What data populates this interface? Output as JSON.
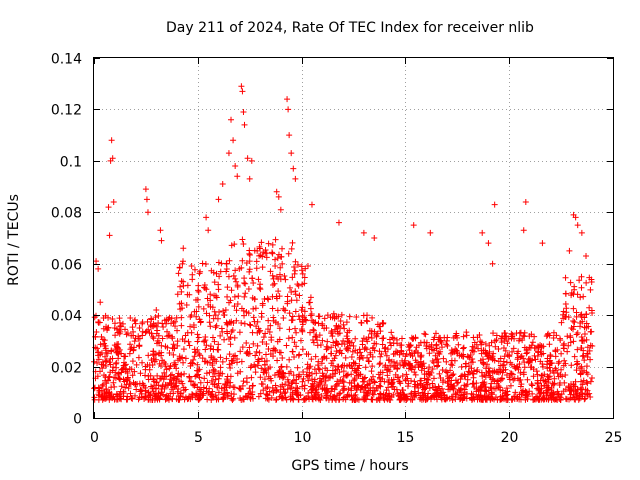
{
  "chart_data": {
    "type": "scatter",
    "title": "Day 211 of 2024, Rate Of TEC Index for receiver nlib",
    "xlabel": "GPS time / hours",
    "ylabel": "ROTI / TECUs",
    "xlim": [
      0,
      25
    ],
    "ylim": [
      0,
      0.14
    ],
    "xticks": [
      0,
      5,
      10,
      15,
      20,
      25
    ],
    "yticks": [
      0,
      0.02,
      0.04,
      0.06,
      0.08,
      0.1,
      0.12,
      0.14
    ],
    "xtick_labels": [
      "0",
      "5",
      "10",
      "15",
      "20",
      "25"
    ],
    "ytick_labels": [
      "0",
      "0.02",
      "0.04",
      "0.06",
      "0.08",
      "0.1",
      "0.12",
      "0.14"
    ],
    "grid": true,
    "marker": "plus",
    "color": "#ff0000",
    "data_x_range": [
      0,
      24
    ],
    "series": [
      {
        "points": [
          [
            0.1,
            0.061
          ],
          [
            0.2,
            0.058
          ],
          [
            0.3,
            0.045
          ],
          [
            0.8,
            0.1
          ],
          [
            0.85,
            0.108
          ],
          [
            0.9,
            0.101
          ],
          [
            0.7,
            0.082
          ],
          [
            0.75,
            0.071
          ],
          [
            0.95,
            0.084
          ],
          [
            2.5,
            0.089
          ],
          [
            2.55,
            0.085
          ],
          [
            2.6,
            0.08
          ],
          [
            3.2,
            0.073
          ],
          [
            3.25,
            0.069
          ],
          [
            4.3,
            0.066
          ],
          [
            5.4,
            0.078
          ],
          [
            5.5,
            0.073
          ],
          [
            6.0,
            0.085
          ],
          [
            6.2,
            0.091
          ],
          [
            6.5,
            0.103
          ],
          [
            6.6,
            0.116
          ],
          [
            6.7,
            0.108
          ],
          [
            6.8,
            0.098
          ],
          [
            6.9,
            0.094
          ],
          [
            7.1,
            0.129
          ],
          [
            7.15,
            0.127
          ],
          [
            7.2,
            0.119
          ],
          [
            7.25,
            0.114
          ],
          [
            7.4,
            0.101
          ],
          [
            7.5,
            0.093
          ],
          [
            7.6,
            0.1
          ],
          [
            8.8,
            0.088
          ],
          [
            8.9,
            0.086
          ],
          [
            9.0,
            0.081
          ],
          [
            9.3,
            0.124
          ],
          [
            9.35,
            0.12
          ],
          [
            9.4,
            0.11
          ],
          [
            9.5,
            0.103
          ],
          [
            9.6,
            0.097
          ],
          [
            9.7,
            0.093
          ],
          [
            10.5,
            0.083
          ],
          [
            11.8,
            0.076
          ],
          [
            13.0,
            0.072
          ],
          [
            13.5,
            0.07
          ],
          [
            15.4,
            0.075
          ],
          [
            16.2,
            0.072
          ],
          [
            18.7,
            0.072
          ],
          [
            19.0,
            0.068
          ],
          [
            19.3,
            0.083
          ],
          [
            19.2,
            0.06
          ],
          [
            20.8,
            0.084
          ],
          [
            20.7,
            0.073
          ],
          [
            21.6,
            0.068
          ],
          [
            22.9,
            0.065
          ],
          [
            23.1,
            0.079
          ],
          [
            23.2,
            0.078
          ],
          [
            23.3,
            0.075
          ],
          [
            23.5,
            0.072
          ],
          [
            23.7,
            0.063
          ],
          [
            0.5,
            0.028
          ],
          [
            1.0,
            0.035
          ],
          [
            1.5,
            0.024
          ],
          [
            2.0,
            0.031
          ],
          [
            3.0,
            0.042
          ],
          [
            3.5,
            0.038
          ],
          [
            4.0,
            0.034
          ],
          [
            4.5,
            0.048
          ],
          [
            5.0,
            0.046
          ],
          [
            5.5,
            0.044
          ],
          [
            6.0,
            0.05
          ],
          [
            6.5,
            0.055
          ],
          [
            7.0,
            0.058
          ],
          [
            7.5,
            0.061
          ],
          [
            8.0,
            0.052
          ],
          [
            8.5,
            0.057
          ],
          [
            9.0,
            0.054
          ],
          [
            9.5,
            0.049
          ],
          [
            10.0,
            0.042
          ],
          [
            10.5,
            0.038
          ],
          [
            11.0,
            0.036
          ],
          [
            11.5,
            0.033
          ],
          [
            12.0,
            0.03
          ],
          [
            12.5,
            0.028
          ],
          [
            13.0,
            0.031
          ],
          [
            13.5,
            0.029
          ],
          [
            14.0,
            0.027
          ],
          [
            14.5,
            0.025
          ],
          [
            15.0,
            0.024
          ],
          [
            15.5,
            0.026
          ],
          [
            16.0,
            0.028
          ],
          [
            16.5,
            0.027
          ],
          [
            17.0,
            0.03
          ],
          [
            17.5,
            0.025
          ],
          [
            18.0,
            0.024
          ],
          [
            18.5,
            0.027
          ],
          [
            19.0,
            0.023
          ],
          [
            19.5,
            0.022
          ],
          [
            20.0,
            0.024
          ],
          [
            20.5,
            0.021
          ],
          [
            21.0,
            0.023
          ],
          [
            21.5,
            0.022
          ],
          [
            22.0,
            0.024
          ],
          [
            22.5,
            0.025
          ],
          [
            23.0,
            0.035
          ],
          [
            23.5,
            0.03
          ],
          [
            24.0,
            0.028
          ]
        ]
      }
    ]
  }
}
